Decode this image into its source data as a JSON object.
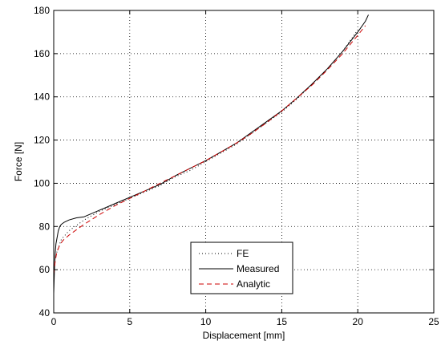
{
  "chart_data": {
    "type": "line",
    "title": "",
    "xlabel": "Displacement [mm]",
    "ylabel": "Force [N]",
    "xlim": [
      0,
      25
    ],
    "ylim": [
      40,
      180
    ],
    "xticks": [
      0,
      5,
      10,
      15,
      20,
      25
    ],
    "yticks": [
      40,
      60,
      80,
      100,
      120,
      140,
      160,
      180
    ],
    "grid": true,
    "legend_position": "bottom-center",
    "series": [
      {
        "name": "FE",
        "style": "dotted",
        "color": "#000000",
        "x": [
          0.2,
          0.5,
          1,
          2,
          3,
          4,
          5,
          6,
          7,
          8,
          9,
          10,
          11,
          12,
          13,
          14,
          15,
          16,
          17,
          18,
          19,
          20
        ],
        "y": [
          68,
          74,
          78,
          83,
          87,
          90,
          93,
          96,
          99,
          103,
          106,
          110,
          114,
          118,
          123,
          128,
          133,
          139,
          146,
          153,
          161,
          171
        ]
      },
      {
        "name": "Measured",
        "style": "solid",
        "color": "#000000",
        "x": [
          0,
          0.05,
          0.1,
          0.15,
          0.2,
          0.3,
          0.4,
          0.5,
          0.7,
          1.0,
          1.5,
          2,
          3,
          4,
          5,
          6,
          7,
          8,
          9,
          10,
          11,
          12,
          13,
          14,
          15,
          16,
          17,
          18,
          19,
          20,
          20.5,
          20.7
        ],
        "y": [
          49,
          60,
          68,
          72,
          74,
          78,
          80,
          81,
          82,
          83,
          84,
          84.5,
          87.5,
          90.5,
          93.5,
          96.5,
          99.5,
          103.5,
          107,
          110.5,
          114.5,
          118.5,
          123.5,
          128.5,
          133.5,
          139.5,
          146,
          153,
          161,
          170,
          175,
          178
        ]
      },
      {
        "name": "Analytic",
        "style": "dashed",
        "color": "#cc0000",
        "x": [
          0,
          0.1,
          0.2,
          0.4,
          0.6,
          1,
          1.5,
          2,
          3,
          4,
          5,
          6,
          7,
          8,
          9,
          10,
          11,
          12,
          13,
          14,
          15,
          16,
          17,
          18,
          19,
          20,
          20.5
        ],
        "y": [
          58,
          64,
          68,
          71.5,
          73.5,
          76,
          78.5,
          81,
          85.5,
          89.5,
          93,
          96.5,
          100,
          103.5,
          107,
          110.5,
          114.5,
          118.5,
          123,
          128,
          133.5,
          139.5,
          145.5,
          152.5,
          160,
          168.5,
          173
        ]
      }
    ]
  }
}
